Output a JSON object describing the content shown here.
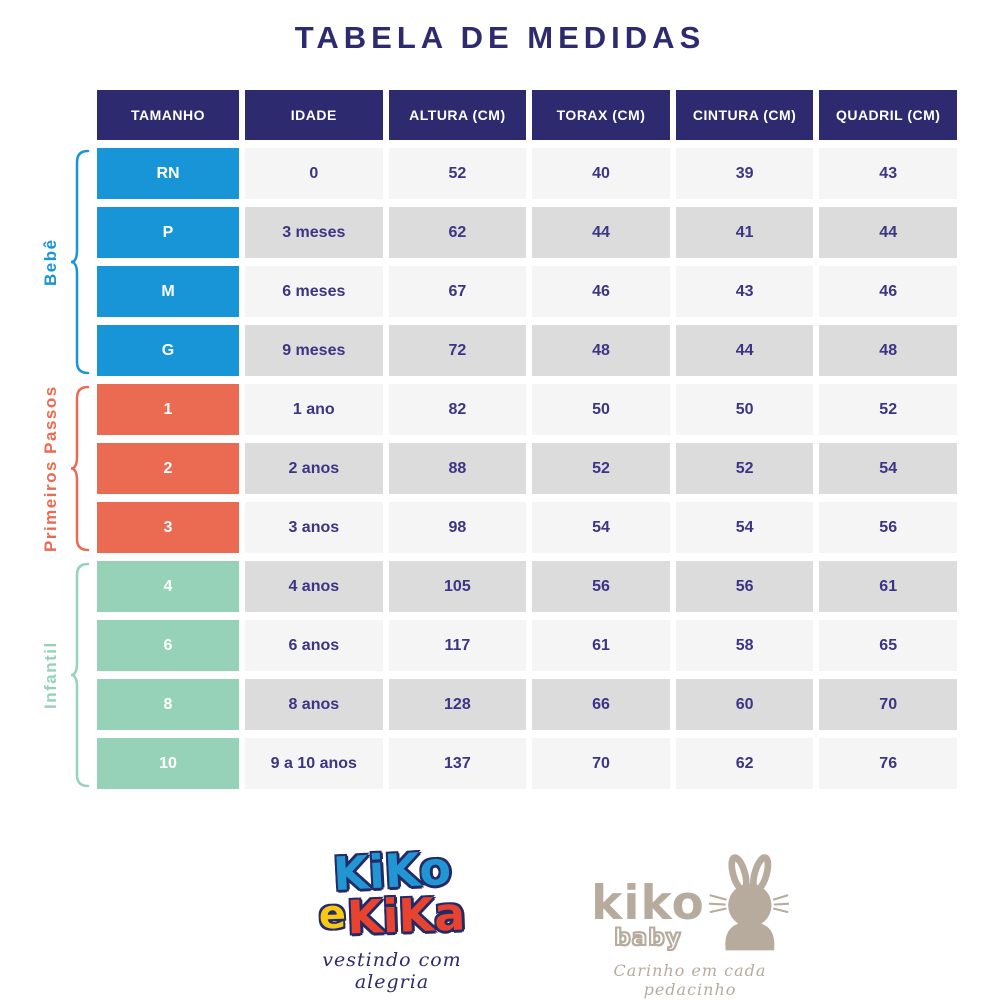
{
  "title": "TABELA DE MEDIDAS",
  "colors": {
    "header_bg": "#2e2a6f",
    "cell_text": "#3c3484",
    "row_light": "#f5f5f5",
    "row_dark": "#dcdcdc",
    "group_bebe": "#1795d7",
    "group_primeiros_passos": "#ea6a52",
    "group_infantil": "#96d2b8"
  },
  "table": {
    "headers": [
      "TAMANHO",
      "IDADE",
      "ALTURA (CM)",
      "TORAX (CM)",
      "CINTURA (CM)",
      "QUADRIL (CM)"
    ],
    "groups": [
      {
        "label": "Bebê",
        "color": "#1795d7",
        "rows": [
          [
            "RN",
            "0",
            "52",
            "40",
            "39",
            "43"
          ],
          [
            "P",
            "3 meses",
            "62",
            "44",
            "41",
            "44"
          ],
          [
            "M",
            "6 meses",
            "67",
            "46",
            "43",
            "46"
          ],
          [
            "G",
            "9 meses",
            "72",
            "48",
            "44",
            "48"
          ]
        ]
      },
      {
        "label": "Primeiros Passos",
        "color": "#ea6a52",
        "rows": [
          [
            "1",
            "1 ano",
            "82",
            "50",
            "50",
            "52"
          ],
          [
            "2",
            "2 anos",
            "88",
            "52",
            "52",
            "54"
          ],
          [
            "3",
            "3 anos",
            "98",
            "54",
            "54",
            "56"
          ]
        ]
      },
      {
        "label": "Infantil",
        "color": "#96d2b8",
        "rows": [
          [
            "4",
            "4 anos",
            "105",
            "56",
            "56",
            "61"
          ],
          [
            "6",
            "6 anos",
            "117",
            "61",
            "58",
            "65"
          ],
          [
            "8",
            "8 anos",
            "128",
            "66",
            "60",
            "70"
          ],
          [
            "10",
            "9 a 10 anos",
            "137",
            "70",
            "62",
            "76"
          ]
        ]
      }
    ]
  },
  "chart_data": {
    "type": "table",
    "title": "TABELA DE MEDIDAS",
    "columns": [
      "TAMANHO",
      "IDADE",
      "ALTURA (CM)",
      "TORAX (CM)",
      "CINTURA (CM)",
      "QUADRIL (CM)"
    ],
    "row_groups": [
      {
        "group": "Bebê",
        "rows": [
          [
            "RN",
            "0",
            52,
            40,
            39,
            43
          ],
          [
            "P",
            "3 meses",
            62,
            44,
            41,
            44
          ],
          [
            "M",
            "6 meses",
            67,
            46,
            43,
            46
          ],
          [
            "G",
            "9 meses",
            72,
            48,
            44,
            48
          ]
        ]
      },
      {
        "group": "Primeiros Passos",
        "rows": [
          [
            "1",
            "1 ano",
            82,
            50,
            50,
            52
          ],
          [
            "2",
            "2 anos",
            88,
            52,
            52,
            54
          ],
          [
            "3",
            "3 anos",
            98,
            54,
            54,
            56
          ]
        ]
      },
      {
        "group": "Infantil",
        "rows": [
          [
            "4",
            "4 anos",
            105,
            56,
            56,
            61
          ],
          [
            "6",
            "6 anos",
            117,
            61,
            58,
            65
          ],
          [
            "8",
            "8 anos",
            128,
            66,
            60,
            70
          ],
          [
            "10",
            "9 a 10 anos",
            137,
            70,
            62,
            76
          ]
        ]
      }
    ]
  },
  "footer": {
    "logo_left": {
      "word1": "KiKo",
      "conjunction": "e",
      "word2": "KiKa",
      "tagline": "vestindo com alegria"
    },
    "logo_right": {
      "name": "kiko",
      "sub": "baby",
      "tagline": "Carinho em cada pedacinho"
    }
  }
}
